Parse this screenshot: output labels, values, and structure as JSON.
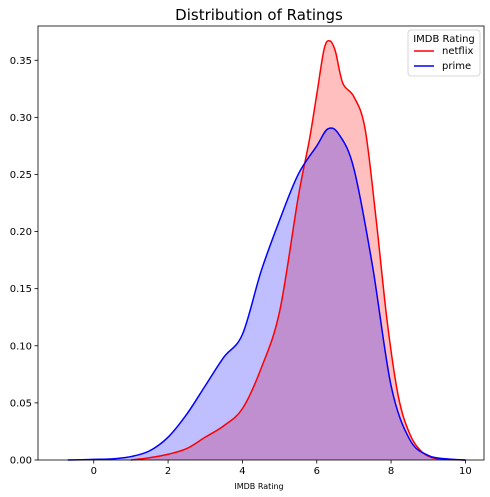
{
  "chart_data": {
    "type": "area",
    "title": "Distribution of Ratings",
    "xlabel": "IMDB Rating",
    "ylabel": "",
    "xlim": [
      -1.5,
      10.5
    ],
    "ylim": [
      0,
      0.38
    ],
    "x_ticks": [
      0,
      2,
      4,
      6,
      8,
      10
    ],
    "y_ticks": [
      0.0,
      0.05,
      0.1,
      0.15,
      0.2,
      0.25,
      0.3,
      0.35
    ],
    "y_tick_labels": [
      "0.00",
      "0.05",
      "0.10",
      "0.15",
      "0.20",
      "0.25",
      "0.30",
      "0.35"
    ],
    "grid": false,
    "legend": {
      "title": "IMDB Rating",
      "placement": "top-right"
    },
    "series": [
      {
        "name": "netflix",
        "line_color": "#ff0000",
        "fill_color": "#ff0000",
        "fill_alpha": 0.25,
        "x": [
          1.0,
          1.5,
          2.0,
          2.5,
          3.0,
          3.5,
          4.0,
          4.5,
          5.0,
          5.5,
          5.8,
          6.0,
          6.2,
          6.35,
          6.5,
          6.7,
          7.0,
          7.3,
          7.6,
          7.9,
          8.2,
          8.5,
          8.8,
          9.1,
          9.5,
          10.0
        ],
        "y": [
          0.0,
          0.002,
          0.005,
          0.01,
          0.02,
          0.03,
          0.045,
          0.08,
          0.13,
          0.23,
          0.28,
          0.32,
          0.36,
          0.367,
          0.358,
          0.33,
          0.318,
          0.29,
          0.21,
          0.12,
          0.055,
          0.023,
          0.008,
          0.002,
          0.0005,
          0.0
        ]
      },
      {
        "name": "prime",
        "line_color": "#0000ff",
        "fill_color": "#0000ff",
        "fill_alpha": 0.25,
        "x": [
          -0.7,
          0.0,
          0.5,
          1.0,
          1.5,
          2.0,
          2.5,
          3.0,
          3.5,
          4.0,
          4.5,
          5.0,
          5.5,
          6.0,
          6.3,
          6.6,
          7.0,
          7.5,
          8.0,
          8.5,
          9.0,
          9.5,
          10.0
        ],
        "y": [
          0.0,
          0.0005,
          0.001,
          0.003,
          0.008,
          0.02,
          0.04,
          0.065,
          0.09,
          0.11,
          0.165,
          0.21,
          0.25,
          0.275,
          0.29,
          0.285,
          0.255,
          0.17,
          0.065,
          0.018,
          0.004,
          0.001,
          0.0
        ]
      }
    ]
  }
}
